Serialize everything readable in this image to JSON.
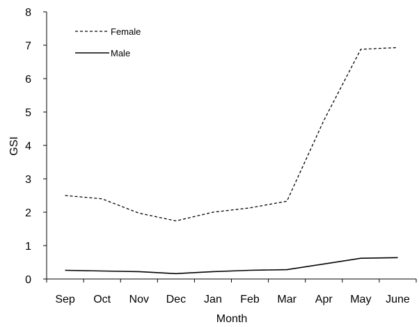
{
  "chart_data": {
    "type": "line",
    "categories": [
      "Sep",
      "Oct",
      "Nov",
      "Dec",
      "Jan",
      "Feb",
      "Mar",
      "Apr",
      "May",
      "June"
    ],
    "series": [
      {
        "name": "Female",
        "values": [
          2.5,
          2.4,
          1.97,
          1.74,
          2.0,
          2.13,
          2.33,
          4.75,
          6.88,
          6.93
        ],
        "line_style": "dashed"
      },
      {
        "name": "Male",
        "values": [
          0.26,
          0.24,
          0.22,
          0.16,
          0.22,
          0.26,
          0.28,
          0.45,
          0.62,
          0.64
        ],
        "line_style": "solid"
      }
    ],
    "title": "",
    "xlabel": "Month",
    "ylabel": "GSI",
    "ylim": [
      0,
      8
    ],
    "yticks": [
      0,
      1,
      2,
      3,
      4,
      5,
      6,
      7,
      8
    ],
    "grid": false,
    "legend_position": "top-left",
    "line_color": "#000000"
  }
}
